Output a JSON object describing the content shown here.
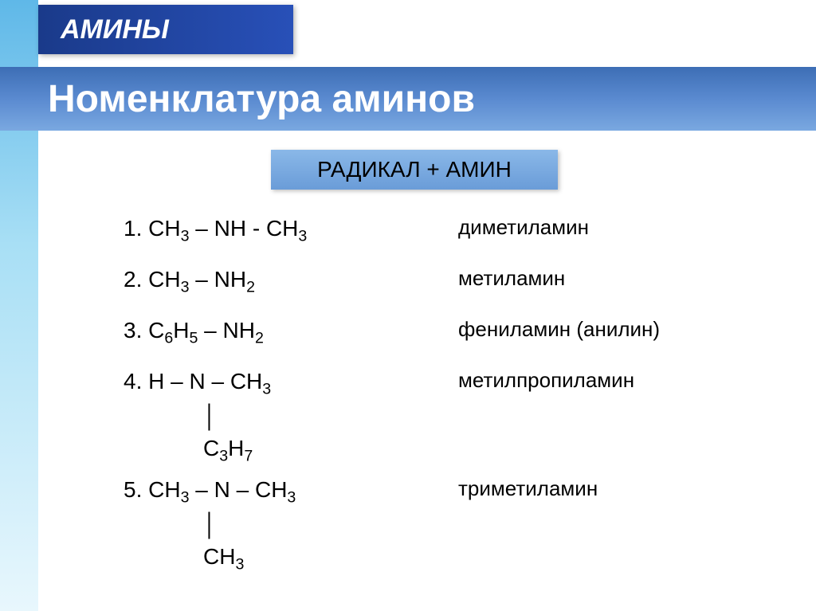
{
  "title": "АМИНЫ",
  "subtitle": "Номенклатура аминов",
  "formula_rule": "РАДИКАЛ + АМИН",
  "title_fontsize": 34,
  "subtitle_fontsize": 48,
  "formula_rule_fontsize": 28,
  "item_fontsize": 28,
  "name_fontsize": 26,
  "colors": {
    "title_bg_start": "#1a3a8a",
    "title_bg_end": "#2850b8",
    "subtitle_bg_start": "#3d6eb5",
    "subtitle_bg_end": "#7aa8e0",
    "formula_box_start": "#8ab8e8",
    "formula_box_end": "#6a9cd8",
    "stripe_top": "#5fb8e8",
    "stripe_bottom": "#e8f7fd",
    "text_white": "#ffffff",
    "text_black": "#000000",
    "background": "#ffffff"
  },
  "items": [
    {
      "num": "1.",
      "formula_html": "CH<sub>3</sub> – NH - CH<sub>3</sub>",
      "name": "диметиламин",
      "sublines": []
    },
    {
      "num": "2.",
      "formula_html": "CH<sub>3</sub> – NH<sub>2</sub>",
      "name": "метиламин",
      "sublines": []
    },
    {
      "num": "3.",
      "formula_html": "C<sub>6</sub>H<sub>5</sub> – NH<sub>2</sub>",
      "name": "фениламин (анилин)",
      "sublines": []
    },
    {
      "num": "4.",
      "formula_html": "H – N – CH<sub>3</sub>",
      "name": "метилпропиламин",
      "sublines": [
        "│",
        "C<sub>3</sub>H<sub>7</sub>"
      ]
    },
    {
      "num": "5.",
      "formula_html": "CH<sub>3</sub> – N – CH<sub>3</sub>",
      "name": "триметиламин",
      "sublines": [
        "│",
        "CH<sub>3</sub>"
      ]
    }
  ]
}
